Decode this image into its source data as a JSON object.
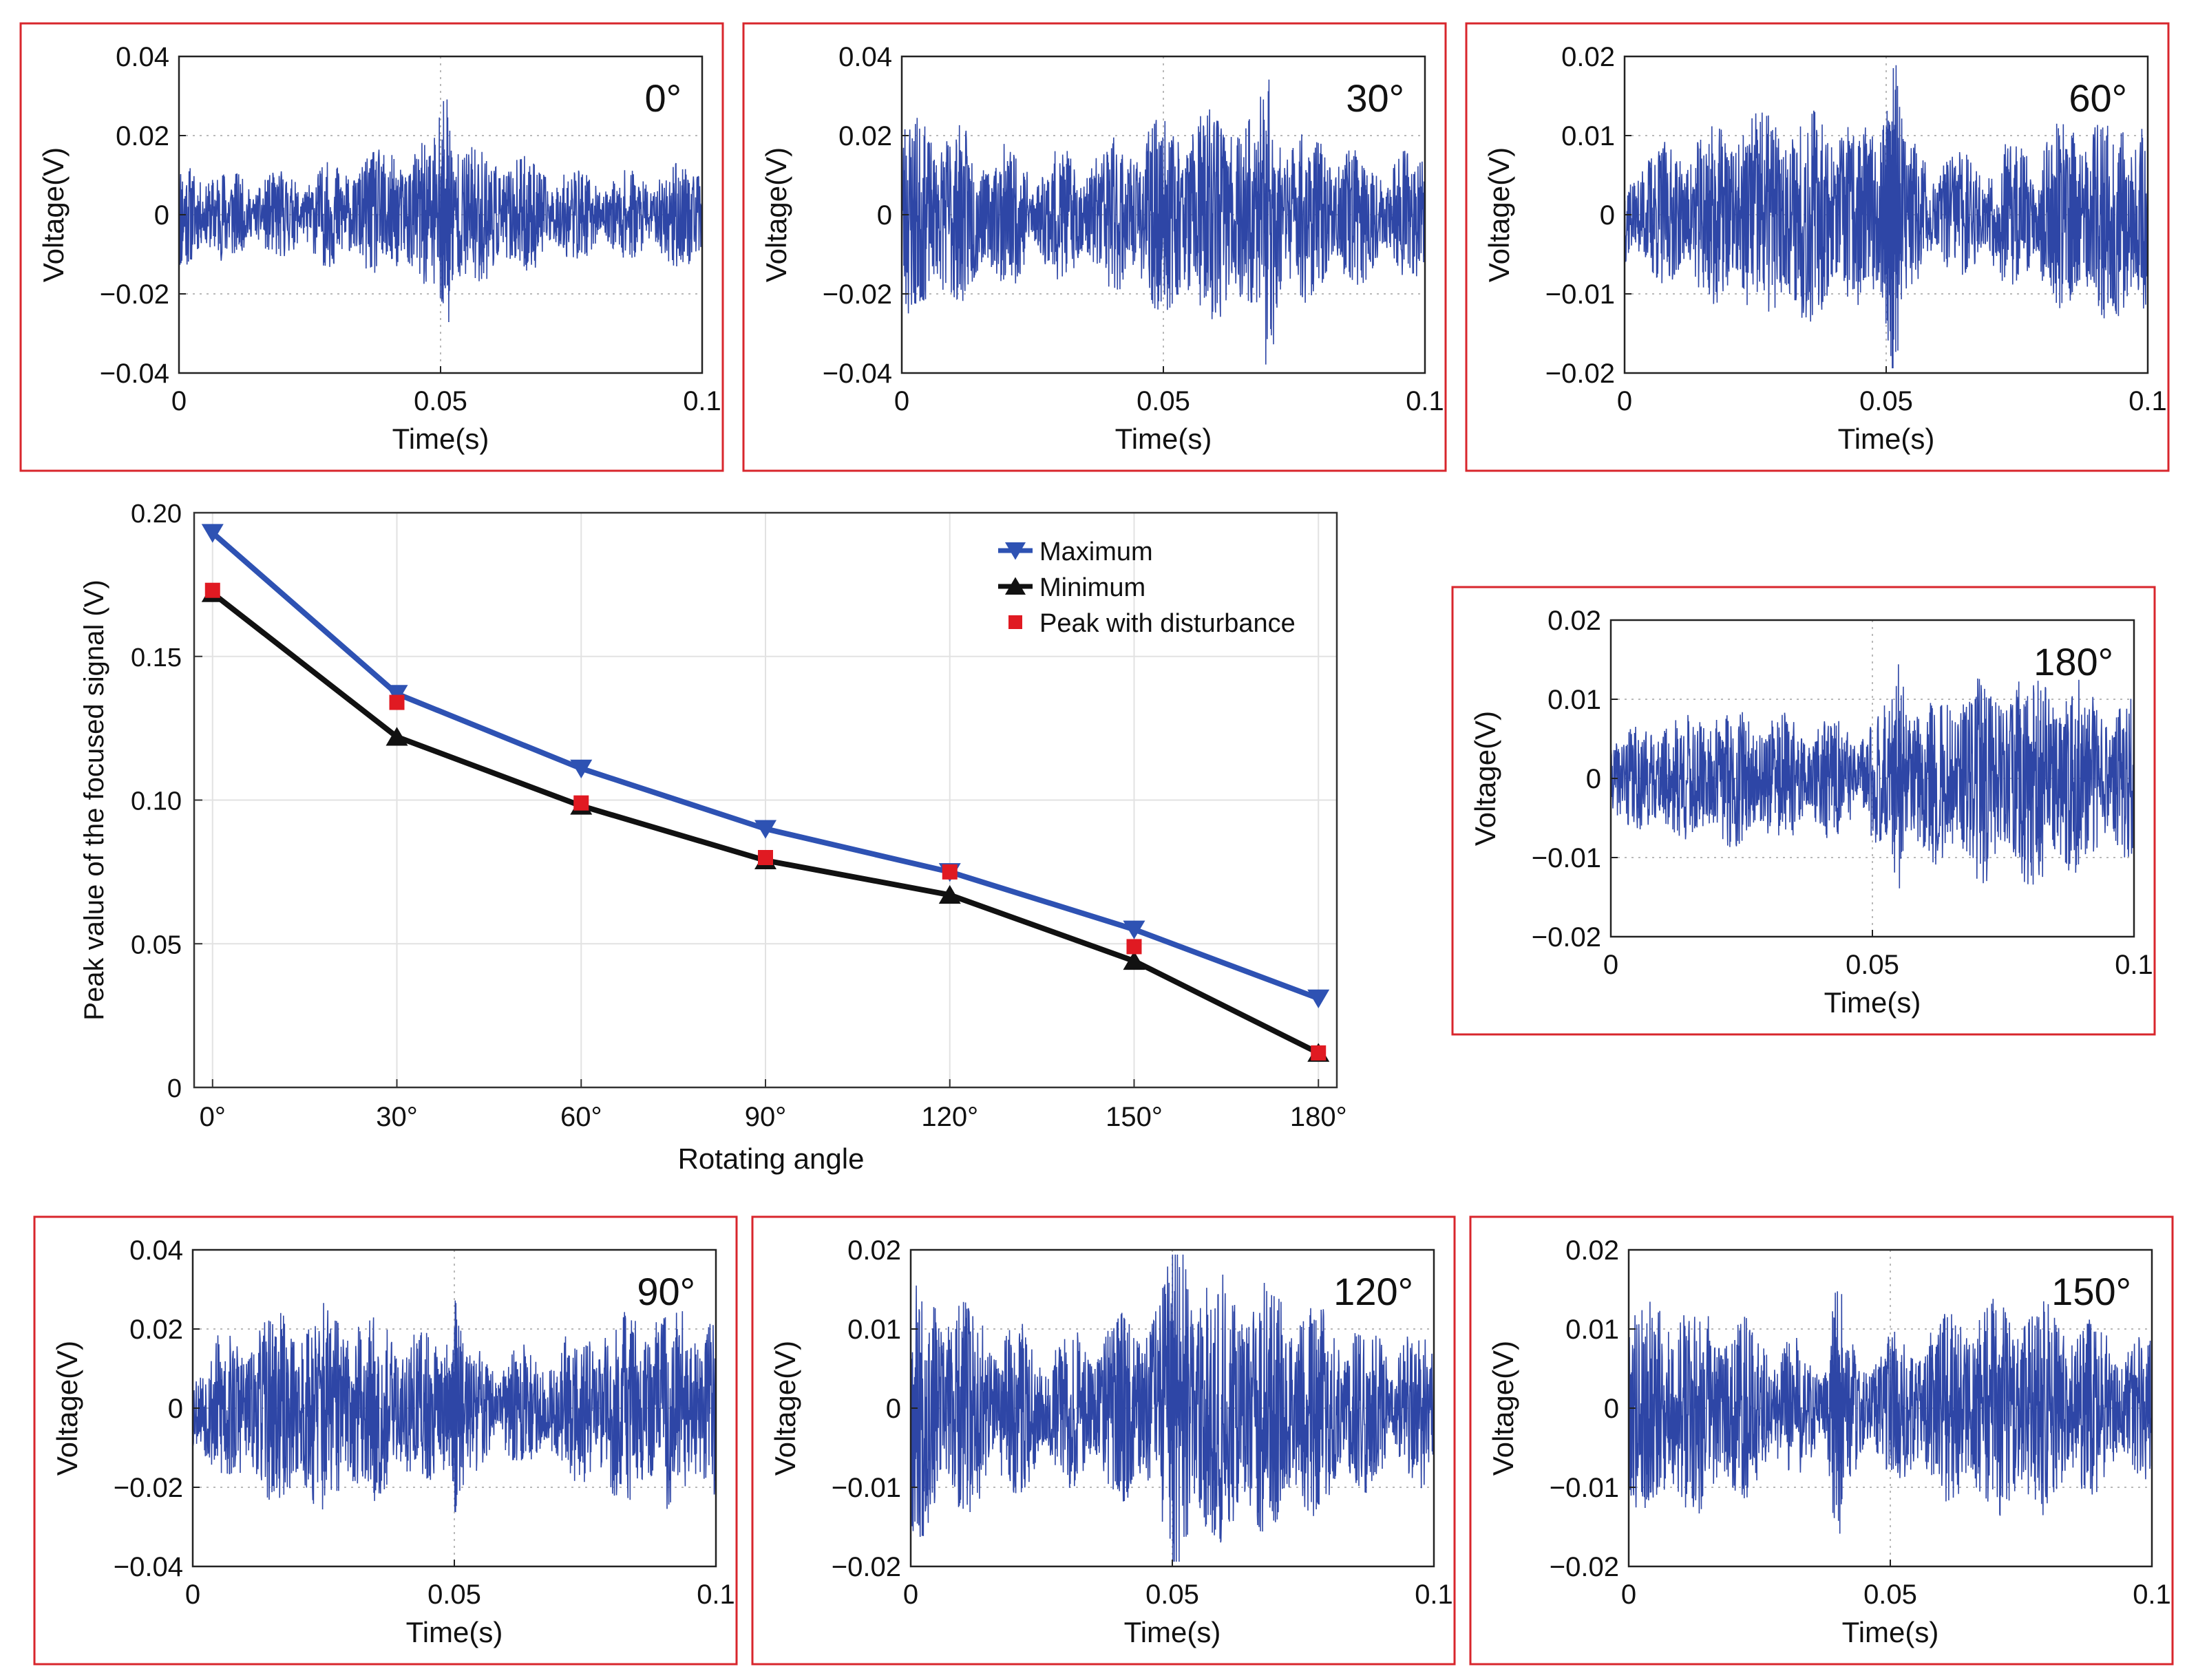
{
  "colors": {
    "signal": "#2e46a6",
    "max_line": "#2e52b3",
    "min_line": "#111111",
    "disturbance": "#e01a22",
    "frame": "#d8262c",
    "grid": "#b9b9b9"
  },
  "chart_data": [
    {
      "id": "main",
      "type": "line",
      "title": "",
      "xlabel": "Rotating angle",
      "ylabel": "Peak value of the focused signal (V)",
      "categories": [
        "0°",
        "30°",
        "60°",
        "90°",
        "120°",
        "150°",
        "180°"
      ],
      "x": [
        0,
        30,
        60,
        90,
        120,
        150,
        180
      ],
      "xlim": [
        -3,
        183
      ],
      "ylim": [
        0,
        0.2
      ],
      "yticks": [
        "0",
        "0.05",
        "0.10",
        "0.15",
        "0.20"
      ],
      "ytick_values": [
        0,
        0.05,
        0.1,
        0.15,
        0.2
      ],
      "grid": true,
      "legend_position": "top-right",
      "series": [
        {
          "name": "Maximum",
          "marker": "triangle-down",
          "values": [
            0.193,
            0.137,
            0.111,
            0.09,
            0.075,
            0.055,
            0.031
          ]
        },
        {
          "name": "Minimum",
          "marker": "triangle-up",
          "values": [
            0.172,
            0.122,
            0.098,
            0.079,
            0.067,
            0.044,
            0.012
          ]
        },
        {
          "name": "Peak with disturbance",
          "marker": "square",
          "values": [
            0.173,
            0.134,
            0.099,
            0.08,
            0.075,
            0.049,
            0.012
          ]
        }
      ]
    },
    {
      "id": "sig-0",
      "type": "line",
      "annotation": "0°",
      "xlabel": "Time(s)",
      "ylabel": "Voltage(V)",
      "xlim": [
        0,
        0.1
      ],
      "ylim": [
        -0.04,
        0.04
      ],
      "xticks": [
        "0",
        "0.05",
        "0.1"
      ],
      "yticks": [
        "0.04",
        "0.02",
        "0",
        "−0.02",
        "−0.04"
      ],
      "amplitude": 0.012,
      "peak_time": 0.051,
      "peak_value": 0.026,
      "envelope": "flat"
    },
    {
      "id": "sig-30",
      "type": "line",
      "annotation": "30°",
      "xlabel": "Time(s)",
      "ylabel": "Voltage(V)",
      "xlim": [
        0,
        0.1
      ],
      "ylim": [
        -0.04,
        0.04
      ],
      "xticks": [
        "0",
        "0.05",
        "0.1"
      ],
      "yticks": [
        "0.04",
        "0.02",
        "0",
        "−0.02",
        "−0.04"
      ],
      "amplitude": 0.018,
      "peak_time": 0.07,
      "peak_value": 0.028,
      "envelope": "flat"
    },
    {
      "id": "sig-60",
      "type": "line",
      "annotation": "60°",
      "xlabel": "Time(s)",
      "ylabel": "Voltage(V)",
      "xlim": [
        0,
        0.1
      ],
      "ylim": [
        -0.02,
        0.02
      ],
      "xticks": [
        "0",
        "0.05",
        "0.1"
      ],
      "yticks": [
        "0.02",
        "0.01",
        "0",
        "−0.01",
        "−0.02"
      ],
      "amplitude": 0.009,
      "peak_time": 0.051,
      "peak_value": 0.019,
      "envelope": "flat"
    },
    {
      "id": "sig-180",
      "type": "line",
      "annotation": "180°",
      "xlabel": "Time(s)",
      "ylabel": "Voltage(V)",
      "xlim": [
        0,
        0.1
      ],
      "ylim": [
        -0.02,
        0.02
      ],
      "xticks": [
        "0",
        "0.05",
        "0.1"
      ],
      "yticks": [
        "0.02",
        "0.01",
        "0",
        "−0.01",
        "−0.02"
      ],
      "amplitude": 0.009,
      "peak_time": 0.055,
      "peak_value": 0.013,
      "envelope": "rising"
    },
    {
      "id": "sig-90",
      "type": "line",
      "annotation": "90°",
      "xlabel": "Time(s)",
      "ylabel": "Voltage(V)",
      "xlim": [
        0,
        0.1
      ],
      "ylim": [
        -0.04,
        0.04
      ],
      "xticks": [
        "0",
        "0.05",
        "0.1"
      ],
      "yticks": [
        "0.04",
        "0.02",
        "0",
        "−0.02",
        "−0.04"
      ],
      "amplitude": 0.017,
      "peak_time": 0.05,
      "peak_value": 0.026,
      "envelope": "flat"
    },
    {
      "id": "sig-120",
      "type": "line",
      "annotation": "120°",
      "xlabel": "Time(s)",
      "ylabel": "Voltage(V)",
      "xlim": [
        0,
        0.1
      ],
      "ylim": [
        -0.02,
        0.02
      ],
      "xticks": [
        "0",
        "0.05",
        "0.1"
      ],
      "yticks": [
        "0.02",
        "0.01",
        "0",
        "−0.01",
        "−0.02"
      ],
      "amplitude": 0.011,
      "peak_time": 0.051,
      "peak_value": 0.02,
      "envelope": "flat"
    },
    {
      "id": "sig-150",
      "type": "line",
      "annotation": "150°",
      "xlabel": "Time(s)",
      "ylabel": "Voltage(V)",
      "xlim": [
        0,
        0.1
      ],
      "ylim": [
        -0.02,
        0.02
      ],
      "xticks": [
        "0",
        "0.05",
        "0.1"
      ],
      "yticks": [
        "0.02",
        "0.01",
        "0",
        "−0.01",
        "−0.02"
      ],
      "amplitude": 0.009,
      "peak_time": 0.04,
      "peak_value": 0.015,
      "envelope": "flat"
    }
  ]
}
